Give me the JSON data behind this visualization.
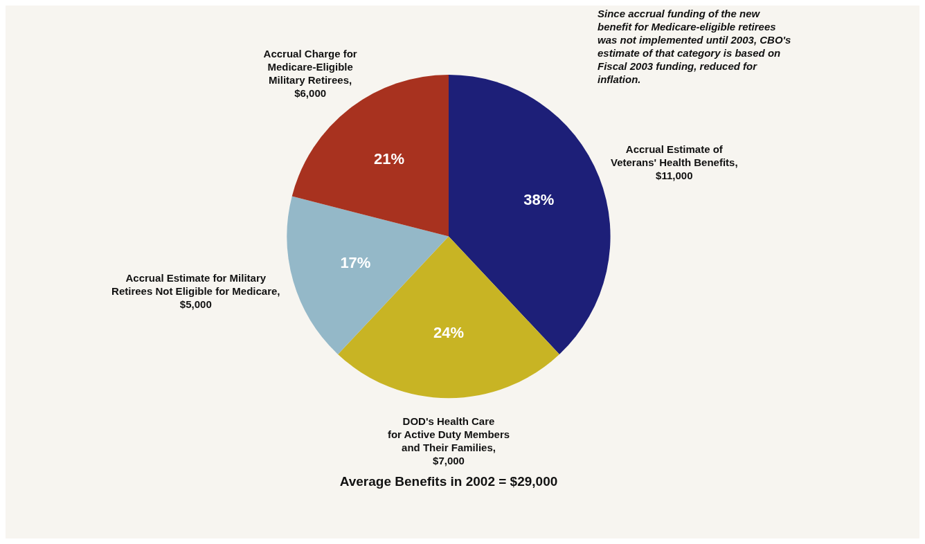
{
  "chart_data": {
    "type": "pie",
    "title": "Average Benefits in 2002 = $29,000",
    "categories": [
      "Accrual Estimate of\nVeterans' Health Benefits,\n$11,000",
      "DOD's Health Care\nfor Active Duty Members\nand Their Families,\n$7,000",
      "Accrual Estimate for Military\nRetirees Not Eligible for Medicare,\n$5,000",
      "Accrual Charge for\nMedicare-Eligible\nMilitary Retirees,\n$6,000"
    ],
    "values": [
      38,
      24,
      17,
      21
    ],
    "value_labels": [
      "38%",
      "24%",
      "17%",
      "21%"
    ],
    "colors": [
      "#1d1f78",
      "#c8b424",
      "#94b8c8",
      "#a8321f"
    ],
    "legend": false,
    "annotations": [
      "Since accrual funding of the new\nbenefit for Medicare-eligible retirees\nwas not implemented until 2003, CBO's\nestimate of that category is based on\nFiscal 2003 funding, reduced for\ninflation."
    ]
  }
}
